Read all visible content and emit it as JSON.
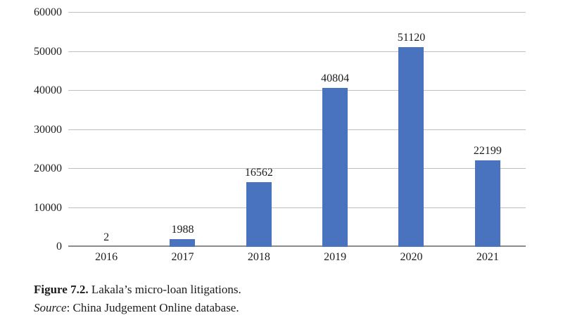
{
  "chart_data": {
    "type": "bar",
    "categories": [
      "2016",
      "2017",
      "2018",
      "2019",
      "2020",
      "2021"
    ],
    "values": [
      2,
      1988,
      16562,
      40804,
      51120,
      22199
    ],
    "title": "",
    "xlabel": "",
    "ylabel": "",
    "ylim": [
      0,
      60000
    ],
    "ytick_step": 10000,
    "ytick_labels": [
      "0",
      "10000",
      "20000",
      "30000",
      "40000",
      "50000",
      "60000"
    ],
    "data_labels": [
      "2",
      "1988",
      "16562",
      "40804",
      "51120",
      "22199"
    ],
    "bar_color": "#4973be",
    "gridline_color": "#bfbfbf",
    "axis_line_color": "#8c8c8c",
    "grid": true,
    "legend_position": "none"
  },
  "caption": {
    "figure_label": "Figure 7.2.",
    "figure_title": " Lakala’s micro-loan litigations.",
    "source_label": "Source",
    "source_rest": ": China Judgement Online database."
  }
}
